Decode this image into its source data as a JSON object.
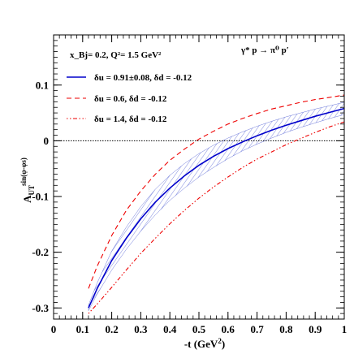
{
  "chart_data": {
    "type": "line",
    "xlabel": "-t (GeV²)",
    "ylabel": "A_UT^{sin(φ-φs)}",
    "xlim": [
      0,
      1
    ],
    "ylim": [
      -0.32,
      0.19
    ],
    "x_ticks": [
      "0",
      "0.1",
      "0.2",
      "0.3",
      "0.4",
      "0.5",
      "0.6",
      "0.7",
      "0.8",
      "0.9",
      "1"
    ],
    "y_ticks": [
      "-0.3",
      "-0.2",
      "-0.1",
      "0",
      "0.1"
    ],
    "zero_line": true,
    "grid": false,
    "legend_position": "top-left",
    "kinematics": "x_Bj= 0.2,  Q²= 1.5 GeV²",
    "process": "γ* p → π⁰ p′",
    "series": [
      {
        "name": "δu = 0.91±0.08, δd = -0.12",
        "style": "solid",
        "color": "#0000cc",
        "x": [
          0.12,
          0.15,
          0.2,
          0.25,
          0.3,
          0.35,
          0.4,
          0.45,
          0.5,
          0.55,
          0.6,
          0.65,
          0.7,
          0.75,
          0.8,
          0.85,
          0.9,
          0.95,
          1.0
        ],
        "values": [
          -0.3,
          -0.265,
          -0.215,
          -0.175,
          -0.14,
          -0.11,
          -0.085,
          -0.063,
          -0.044,
          -0.028,
          -0.014,
          -0.002,
          0.009,
          0.019,
          0.028,
          0.036,
          0.044,
          0.051,
          0.058
        ],
        "band_lower": [
          -0.305,
          -0.275,
          -0.232,
          -0.195,
          -0.162,
          -0.133,
          -0.107,
          -0.085,
          -0.065,
          -0.048,
          -0.032,
          -0.018,
          -0.006,
          0.005,
          0.015,
          0.024,
          0.032,
          0.04,
          0.047
        ],
        "band_upper": [
          -0.295,
          -0.255,
          -0.198,
          -0.155,
          -0.118,
          -0.087,
          -0.062,
          -0.041,
          -0.023,
          -0.008,
          0.005,
          0.016,
          0.026,
          0.035,
          0.043,
          0.05,
          0.057,
          0.063,
          0.069
        ]
      },
      {
        "name": "δu = 0.6, δd = -0.12",
        "style": "dashed",
        "color": "#ee0000",
        "x": [
          0.12,
          0.15,
          0.2,
          0.25,
          0.3,
          0.35,
          0.4,
          0.45,
          0.5,
          0.55,
          0.6,
          0.65,
          0.7,
          0.75,
          0.8,
          0.85,
          0.9,
          0.95,
          1.0
        ],
        "values": [
          -0.265,
          -0.225,
          -0.17,
          -0.125,
          -0.09,
          -0.06,
          -0.035,
          -0.015,
          0.003,
          0.017,
          0.03,
          0.04,
          0.049,
          0.057,
          0.063,
          0.069,
          0.074,
          0.078,
          0.082
        ]
      },
      {
        "name": "δu = 1.4, δd = -0.12",
        "style": "dash-dot",
        "color": "#ee0000",
        "x": [
          0.12,
          0.15,
          0.2,
          0.25,
          0.3,
          0.35,
          0.4,
          0.45,
          0.5,
          0.55,
          0.6,
          0.65,
          0.7,
          0.75,
          0.8,
          0.85,
          0.9,
          0.95,
          1.0
        ],
        "values": [
          -0.31,
          -0.293,
          -0.263,
          -0.232,
          -0.202,
          -0.175,
          -0.149,
          -0.125,
          -0.103,
          -0.083,
          -0.065,
          -0.048,
          -0.033,
          -0.02,
          -0.007,
          0.004,
          0.015,
          0.025,
          0.034
        ]
      }
    ]
  }
}
